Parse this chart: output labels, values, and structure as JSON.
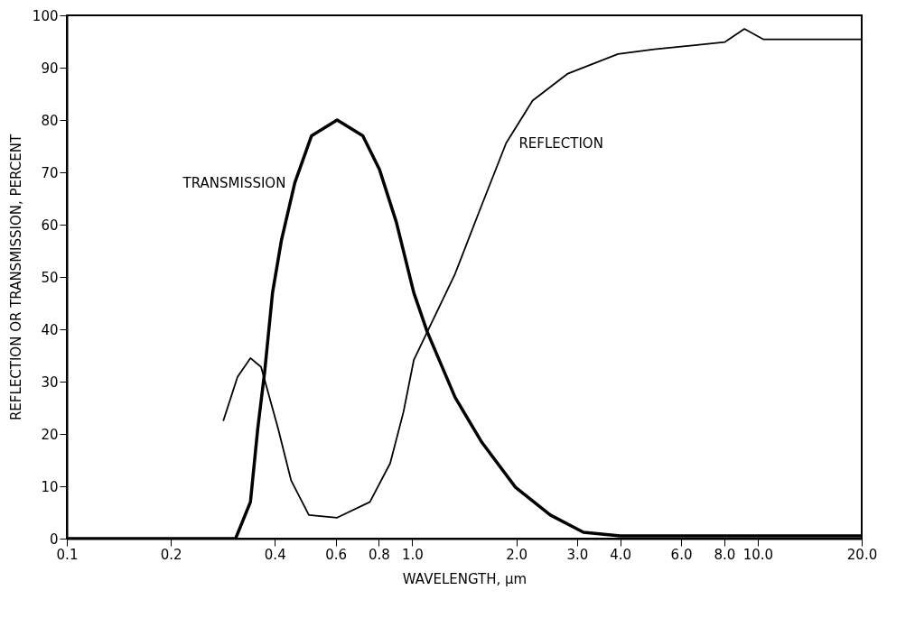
{
  "chart_data": {
    "type": "line",
    "xlabel": "WAVELENGTH, µm",
    "ylabel": "REFLECTION OR TRANSMISSION, PERCENT",
    "log": "x",
    "grid": false,
    "marker": "none",
    "line_style": "solid",
    "xlim": [
      0.1,
      20
    ],
    "ylim": [
      0,
      100
    ],
    "xticks": [
      0.1,
      0.2,
      0.4,
      0.6,
      0.8,
      {
        "value": 1,
        "label": "1.0"
      },
      {
        "value": 2,
        "label": "2.0"
      },
      {
        "value": 3,
        "label": "3.0"
      },
      {
        "value": 4,
        "label": "4.0"
      },
      {
        "value": 6,
        "label": "6.0"
      },
      {
        "value": 8,
        "label": "8.0"
      },
      {
        "value": 10,
        "label": "10.0"
      },
      {
        "value": 20,
        "label": "20.0"
      }
    ],
    "yticks": [
      0,
      10,
      20,
      30,
      40,
      50,
      60,
      70,
      80,
      90,
      100
    ],
    "series": [
      {
        "name": "TRANSMISSION",
        "color": "#000000",
        "x": [
          0.1,
          0.28,
          0.308,
          0.34,
          0.357,
          0.374,
          0.394,
          0.418,
          0.457,
          0.511,
          0.606,
          0.719,
          0.804,
          0.899,
          1.01,
          1.105,
          1.33,
          1.59,
          1.99,
          2.51,
          3.13,
          4.0,
          20
        ],
        "values": [
          0,
          0,
          0,
          7,
          21,
          32,
          47,
          57,
          68,
          77,
          80,
          77,
          70.5,
          60.5,
          47,
          39.5,
          27,
          18.4,
          9.8,
          4.5,
          1.2,
          0.5,
          0.5
        ]
      },
      {
        "name": "REFLECTION",
        "color": "#000000",
        "x": [
          0.284,
          0.312,
          0.34,
          0.365,
          0.409,
          0.446,
          0.502,
          0.606,
          0.754,
          0.863,
          0.943,
          1.01,
          1.105,
          1.33,
          1.59,
          1.87,
          2.23,
          2.81,
          3.94,
          5.02,
          8.04,
          9.15,
          10.4,
          20
        ],
        "values": [
          22.6,
          30.9,
          34.5,
          32.8,
          21,
          11.1,
          4.5,
          4,
          7,
          14.4,
          24.2,
          34.1,
          39.5,
          50.6,
          63.8,
          75.6,
          83.7,
          88.8,
          92.6,
          93.5,
          94.9,
          97.4,
          95.4,
          95.4
        ]
      }
    ]
  }
}
